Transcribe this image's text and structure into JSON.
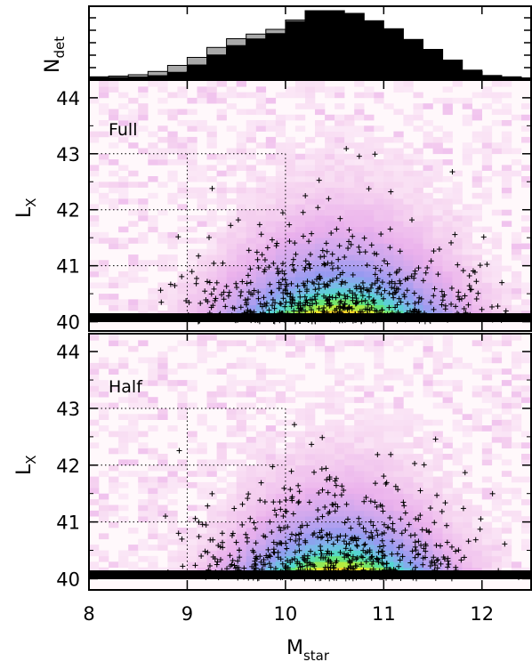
{
  "chart_data": [
    {
      "panel": "histogram",
      "type": "bar",
      "ylabel_main": "N",
      "ylabel_sub": "det",
      "x": [
        8.1,
        8.3,
        8.5,
        8.7,
        8.9,
        9.1,
        9.3,
        9.5,
        9.7,
        9.9,
        10.1,
        10.3,
        10.5,
        10.7,
        10.9,
        11.1,
        11.3,
        11.5,
        11.7,
        11.9,
        12.1,
        12.3
      ],
      "series": [
        {
          "style": "grey outline",
          "values": [
            1,
            2,
            4,
            9,
            18,
            30,
            45,
            58,
            65,
            72,
            86,
            100,
            100,
            96,
            85,
            73,
            57,
            42,
            26,
            11,
            3,
            1
          ]
        },
        {
          "style": "black fill",
          "values": [
            0,
            0,
            1,
            3,
            8,
            19,
            34,
            48,
            58,
            66,
            84,
            99,
            99,
            95,
            85,
            73,
            57,
            42,
            26,
            11,
            3,
            1
          ]
        }
      ]
    },
    {
      "panel": "full",
      "type": "heatmap",
      "label": "Full",
      "ylabel_main": "L",
      "ylabel_sub": "X",
      "yticks": [
        "40",
        "41",
        "42",
        "43",
        "44"
      ],
      "ylim": [
        39.85,
        44.3
      ]
    },
    {
      "panel": "half",
      "type": "heatmap",
      "label": "Half",
      "ylabel_main": "L",
      "ylabel_sub": "X",
      "yticks": [
        "40",
        "41",
        "42",
        "43",
        "44"
      ],
      "ylim": [
        39.85,
        44.3
      ],
      "xlabel_main": "M",
      "xlabel_sub": "star",
      "xticks": [
        "8",
        "9",
        "10",
        "11",
        "12"
      ],
      "xlim": [
        8.0,
        12.5
      ]
    }
  ]
}
